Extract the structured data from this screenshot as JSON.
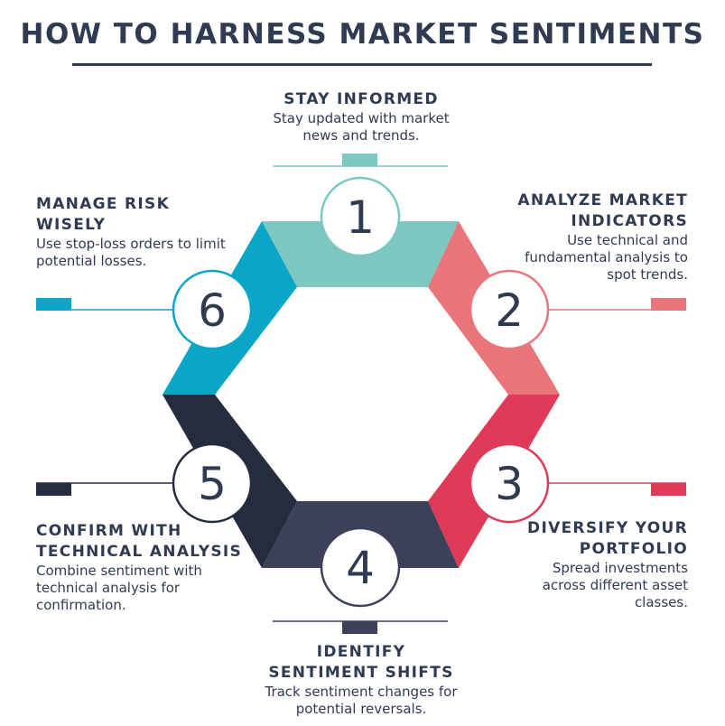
{
  "title": "HOW TO HARNESS MARKET SENTIMENTS",
  "colors": {
    "step1": "#7dc7c3",
    "step2": "#e9747a",
    "step3": "#e03a59",
    "step4": "#3c4159",
    "step5": "#252c3d",
    "step6": "#0aa5c7"
  },
  "steps": [
    {
      "number": "1",
      "heading": "STAY INFORMED",
      "description": "Stay updated with market news and trends."
    },
    {
      "number": "2",
      "heading": "ANALYZE MARKET INDICATORS",
      "description": "Use technical and fundamental analysis to spot trends."
    },
    {
      "number": "3",
      "heading": "DIVERSIFY YOUR PORTFOLIO",
      "description": "Spread investments across different asset classes."
    },
    {
      "number": "4",
      "heading": "IDENTIFY SENTIMENT SHIFTS",
      "description": "Track sentiment changes for potential reversals."
    },
    {
      "number": "5",
      "heading": "CONFIRM WITH TECHNICAL ANALYSIS",
      "description": "Combine sentiment with technical analysis for confirmation."
    },
    {
      "number": "6",
      "heading": "MANAGE RISK WISELY",
      "description": "Use stop-loss orders to limit potential losses."
    }
  ]
}
